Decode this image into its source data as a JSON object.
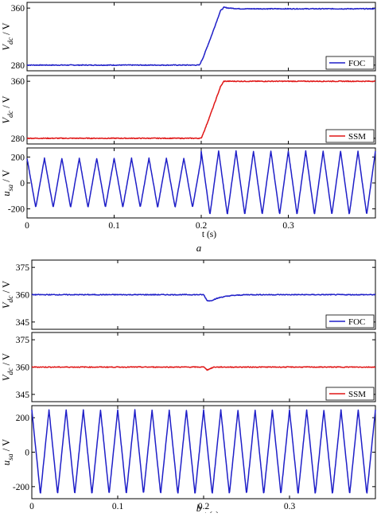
{
  "figure": {
    "panel_a_label": "a",
    "panel_b_label": "b"
  },
  "chart_data": [
    {
      "type": "line",
      "panel": "a",
      "ylabel": "V_dc / V",
      "ylim": [
        272,
        368
      ],
      "xlim": [
        0,
        0.4
      ],
      "yticks": [
        280,
        360
      ],
      "xticks": [],
      "grid": false,
      "legend_position": "bottom-right",
      "series": [
        {
          "name": "FOC",
          "color": "#1f1fc8",
          "x": [
            0,
            0.198,
            0.202,
            0.212,
            0.222,
            0.226,
            0.232,
            0.245,
            0.26,
            0.3,
            0.4
          ],
          "y": [
            280,
            280,
            290,
            322,
            356,
            361,
            360,
            359,
            359,
            359,
            359
          ]
        }
      ]
    },
    {
      "type": "line",
      "panel": "a",
      "ylabel": "V_dc / V",
      "ylim": [
        272,
        368
      ],
      "xlim": [
        0,
        0.4
      ],
      "yticks": [
        280,
        360
      ],
      "xticks": [],
      "grid": false,
      "legend_position": "bottom-right",
      "series": [
        {
          "name": "SSM",
          "color": "#e01616",
          "x": [
            0,
            0.2,
            0.205,
            0.215,
            0.222,
            0.226,
            0.3,
            0.4
          ],
          "y": [
            280,
            280,
            295,
            328,
            352,
            360,
            360,
            360
          ]
        }
      ]
    },
    {
      "type": "line",
      "panel": "a",
      "ylabel": "u_sa / V",
      "xlabel": "t (s)",
      "ylim": [
        -270,
        270
      ],
      "xlim": [
        0,
        0.4
      ],
      "yticks": [
        -200,
        0,
        200
      ],
      "xticks": [
        0,
        0.1,
        0.2,
        0.3
      ],
      "xtick_labels": [
        "0",
        "0.1",
        "0.2",
        "0.3"
      ],
      "grid": false,
      "series": [
        {
          "color": "#1f1fc8",
          "waveform": "triangular",
          "frequency_hz": 50,
          "segments": [
            {
              "t_from": 0,
              "t_to": 0.2,
              "amplitude": 190
            },
            {
              "t_from": 0.2,
              "t_to": 0.4,
              "amplitude": 245
            }
          ]
        }
      ]
    },
    {
      "type": "line",
      "panel": "b",
      "ylabel": "V_dc / V",
      "ylim": [
        341,
        379
      ],
      "xlim": [
        0,
        0.4
      ],
      "yticks": [
        345,
        360,
        375
      ],
      "xticks": [],
      "grid": false,
      "legend_position": "bottom-right",
      "series": [
        {
          "name": "FOC",
          "color": "#1f1fc8",
          "x": [
            0,
            0.2,
            0.204,
            0.208,
            0.212,
            0.22,
            0.232,
            0.25,
            0.27,
            0.3,
            0.4
          ],
          "y": [
            360,
            360,
            356.8,
            356.6,
            357.4,
            358.6,
            359.5,
            360,
            360,
            360,
            360
          ]
        }
      ]
    },
    {
      "type": "line",
      "panel": "b",
      "ylabel": "V_dc / V",
      "ylim": [
        341,
        379
      ],
      "xlim": [
        0,
        0.4
      ],
      "yticks": [
        345,
        360,
        375
      ],
      "xticks": [],
      "grid": false,
      "legend_position": "bottom-right",
      "series": [
        {
          "name": "SSM",
          "color": "#e01616",
          "x": [
            0,
            0.201,
            0.204,
            0.207,
            0.212,
            0.4
          ],
          "y": [
            360,
            360,
            358.4,
            359,
            360,
            360
          ]
        }
      ]
    },
    {
      "type": "line",
      "panel": "b",
      "ylabel": "u_sa / V",
      "xlabel": "t (s)",
      "ylim": [
        -270,
        270
      ],
      "xlim": [
        0,
        0.4
      ],
      "yticks": [
        -200,
        0,
        200
      ],
      "xticks": [
        0,
        0.1,
        0.2,
        0.3
      ],
      "xtick_labels": [
        "0",
        "0.1",
        "0.2",
        "0.3"
      ],
      "grid": false,
      "series": [
        {
          "color": "#1f1fc8",
          "waveform": "triangular",
          "frequency_hz": 50,
          "segments": [
            {
              "t_from": 0,
              "t_to": 0.4,
              "amplitude": 245
            }
          ]
        }
      ]
    }
  ]
}
